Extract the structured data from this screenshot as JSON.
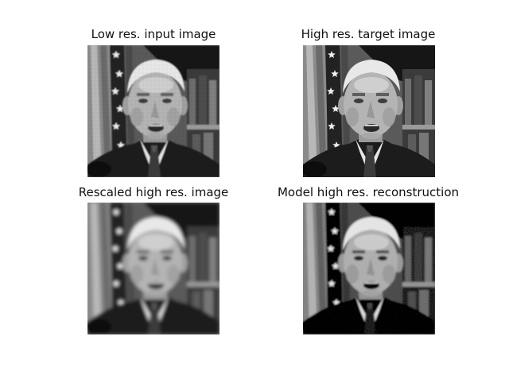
{
  "panels": [
    {
      "title": "Low res. input image",
      "variant": "lowres"
    },
    {
      "title": "High res. target image",
      "variant": "target"
    },
    {
      "title": "Rescaled high res. image",
      "variant": "rescaled"
    },
    {
      "title": "Model high res. reconstruction",
      "variant": "model"
    }
  ],
  "colormap": "gray"
}
